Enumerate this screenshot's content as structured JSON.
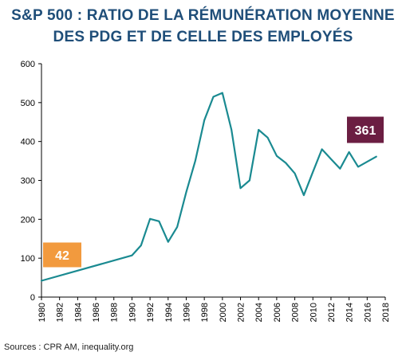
{
  "title_lines": [
    "S&P 500 : RATIO DE LA RÉMUNÉRATION MOYENNE",
    "DES PDG ET DE CELLE DES EMPLOYÉS"
  ],
  "source": "Sources : CPR AM, inequality.org",
  "colors": {
    "title": "#1f4e79",
    "line": "#1a8a91",
    "start_badge": "#f29a3e",
    "end_badge": "#6b1e42",
    "axis": "#000000"
  },
  "chart_data": {
    "type": "line",
    "title": "S&P 500 : RATIO DE LA RÉMUNÉRATION MOYENNE DES PDG ET DE CELLE DES EMPLOYÉS",
    "xlabel": "",
    "ylabel": "",
    "xlim": [
      1980,
      2018
    ],
    "ylim": [
      0,
      600
    ],
    "y_ticks": [
      0,
      100,
      200,
      300,
      400,
      500,
      600
    ],
    "x_ticks": [
      1980,
      1982,
      1984,
      1986,
      1988,
      1990,
      1992,
      1994,
      1996,
      1998,
      2000,
      2002,
      2004,
      2006,
      2008,
      2010,
      2012,
      2014,
      2016,
      2018
    ],
    "grid": false,
    "series": [
      {
        "x": [
          1980,
          1990,
          1991,
          1992,
          1993,
          1994,
          1995,
          1996,
          1997,
          1998,
          1999,
          2000,
          2001,
          2002,
          2003,
          2004,
          2005,
          2006,
          2007,
          2008,
          2009,
          2010,
          2011,
          2012,
          2013,
          2014,
          2015,
          2016,
          2017
        ],
        "y": [
          42,
          107,
          133,
          201,
          195,
          142,
          180,
          270,
          350,
          455,
          515,
          525,
          430,
          280,
          300,
          430,
          410,
          363,
          345,
          318,
          262,
          322,
          380,
          355,
          330,
          373,
          335,
          348,
          361
        ]
      }
    ],
    "annotations": [
      {
        "x": 1980,
        "value": 42,
        "label": "42",
        "color": "start_badge"
      },
      {
        "x": 2017,
        "value": 361,
        "label": "361",
        "color": "end_badge"
      }
    ]
  }
}
